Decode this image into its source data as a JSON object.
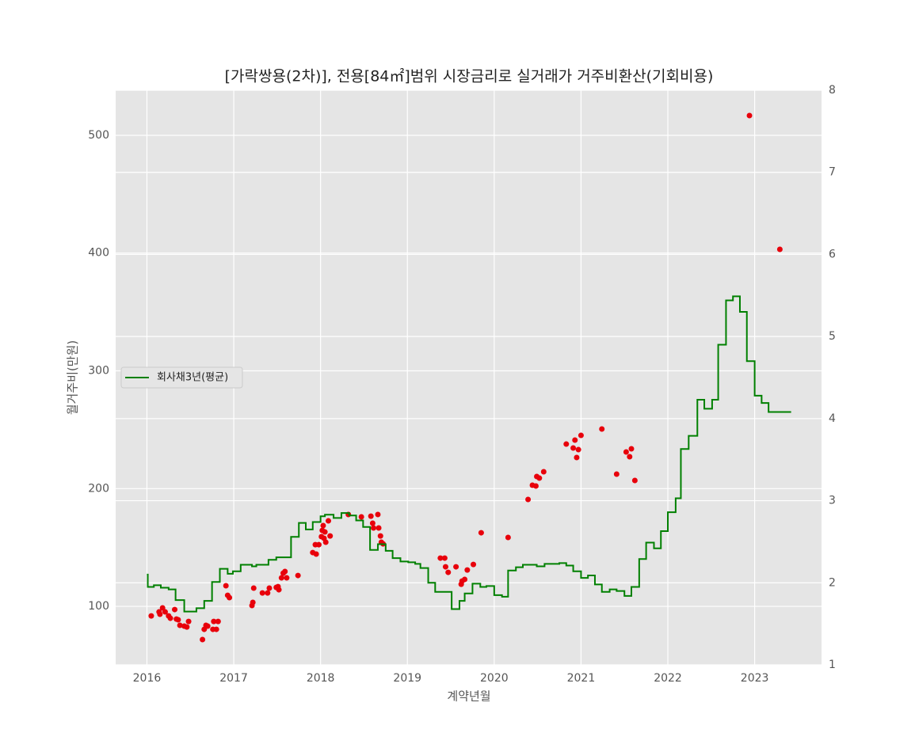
{
  "chart_data": {
    "type": "scatter",
    "title": "[가락쌍용(2차)], 전용[84㎡]범위 시장금리로 실거래가 거주비환산(기회비용)",
    "x_label": "계약년월",
    "y_label": "월거주비(만원)",
    "xlim": [
      2015.64,
      2023.77
    ],
    "xticks": [
      2016,
      2017,
      2018,
      2019,
      2020,
      2021,
      2022,
      2023
    ],
    "ylim": [
      50.3,
      538.3
    ],
    "yticks": [
      100,
      200,
      300,
      400,
      500
    ],
    "y2lim": [
      1,
      8
    ],
    "y2ticks": [
      1,
      2,
      3,
      4,
      5,
      6,
      7,
      8
    ],
    "grid": true,
    "legend": "center left",
    "series": [
      {
        "type": "scatter",
        "color": "#e8000b",
        "x": [
          2016.05,
          2016.14,
          2016.15,
          2016.18,
          2016.21,
          2016.25,
          2016.27,
          2016.32,
          2016.34,
          2016.36,
          2016.38,
          2016.43,
          2016.46,
          2016.48,
          2016.64,
          2016.66,
          2016.68,
          2016.7,
          2016.76,
          2016.77,
          2016.8,
          2016.82,
          2016.91,
          2016.93,
          2016.95,
          2017.21,
          2017.22,
          2017.23,
          2017.33,
          2017.39,
          2017.41,
          2017.49,
          2017.51,
          2017.52,
          2017.55,
          2017.57,
          2017.59,
          2017.61,
          2017.74,
          2017.91,
          2017.94,
          2017.95,
          2017.98,
          2018.01,
          2018.02,
          2018.03,
          2018.04,
          2018.05,
          2018.06,
          2018.09,
          2018.11,
          2018.32,
          2018.47,
          2018.58,
          2018.6,
          2018.61,
          2018.66,
          2018.67,
          2018.69,
          2018.7,
          2018.72,
          2019.38,
          2019.43,
          2019.44,
          2019.47,
          2019.56,
          2019.62,
          2019.63,
          2019.66,
          2019.69,
          2019.76,
          2019.85,
          2020.16,
          2020.39,
          2020.44,
          2020.48,
          2020.49,
          2020.52,
          2020.57,
          2020.83,
          2020.91,
          2020.93,
          2020.95,
          2020.97,
          2021.0,
          2021.24,
          2021.41,
          2021.52,
          2021.56,
          2021.58,
          2021.62,
          2022.94,
          2023.29
        ],
        "values": [
          91.9,
          95.3,
          93.3,
          98.7,
          95.3,
          91.9,
          89.9,
          97.3,
          89.2,
          88.6,
          83.9,
          83.2,
          82.5,
          87.2,
          71.8,
          80.5,
          83.9,
          83.2,
          80.5,
          87.2,
          80.5,
          87.2,
          117.5,
          109.4,
          107.4,
          100.7,
          103.4,
          115.5,
          111.4,
          111.4,
          115.5,
          116.1,
          116.8,
          114.1,
          124.2,
          128.2,
          129.6,
          124.2,
          126.2,
          145.7,
          152.4,
          144.4,
          152.4,
          159.2,
          164.5,
          168.6,
          157.8,
          163.2,
          154.5,
          172.6,
          159.8,
          178.0,
          176.0,
          176.6,
          170.6,
          166.6,
          178.0,
          166.6,
          159.8,
          154.5,
          153.1,
          141.0,
          141.0,
          133.6,
          128.9,
          133.6,
          118.8,
          121.5,
          122.9,
          130.9,
          135.6,
          162.5,
          158.5,
          190.8,
          202.9,
          202.2,
          210.3,
          208.9,
          214.3,
          237.8,
          234.5,
          241.2,
          226.4,
          233.1,
          245.2,
          250.6,
          212.3,
          231.1,
          227.1,
          233.8,
          206.9,
          516.8,
          403.2
        ]
      },
      {
        "type": "line",
        "name": "회사채3년(평균)",
        "color": "#008000",
        "axis": "y2",
        "step": "post",
        "x": [
          2016.0,
          2016.01,
          2016.08,
          2016.16,
          2016.25,
          2016.33,
          2016.43,
          2016.57,
          2016.66,
          2016.75,
          2016.84,
          2016.93,
          2016.99,
          2017.08,
          2017.21,
          2017.26,
          2017.4,
          2017.49,
          2017.66,
          2017.75,
          2017.83,
          2017.91,
          2018.0,
          2018.05,
          2018.15,
          2018.24,
          2018.33,
          2018.41,
          2018.49,
          2018.57,
          2018.66,
          2018.75,
          2018.83,
          2018.92,
          2019.01,
          2019.09,
          2019.15,
          2019.24,
          2019.32,
          2019.51,
          2019.6,
          2019.66,
          2019.75,
          2019.84,
          2019.91,
          2020.0,
          2020.09,
          2020.16,
          2020.25,
          2020.33,
          2020.49,
          2020.58,
          2020.75,
          2020.83,
          2020.91,
          2021.0,
          2021.08,
          2021.16,
          2021.24,
          2021.33,
          2021.41,
          2021.5,
          2021.58,
          2021.67,
          2021.75,
          2021.84,
          2021.92,
          2022.0,
          2022.09,
          2022.15,
          2022.24,
          2022.34,
          2022.42,
          2022.51,
          2022.58,
          2022.67,
          2022.75,
          2022.83,
          2022.91,
          2023.0,
          2023.08,
          2023.16,
          2023.42
        ],
        "values": [
          2.1,
          1.95,
          1.97,
          1.94,
          1.92,
          1.79,
          1.65,
          1.69,
          1.78,
          2.01,
          2.17,
          2.11,
          2.14,
          2.22,
          2.2,
          2.22,
          2.28,
          2.31,
          2.56,
          2.73,
          2.65,
          2.74,
          2.81,
          2.83,
          2.79,
          2.85,
          2.82,
          2.76,
          2.68,
          2.4,
          2.47,
          2.39,
          2.3,
          2.26,
          2.25,
          2.23,
          2.18,
          2.0,
          1.89,
          1.68,
          1.78,
          1.87,
          1.99,
          1.95,
          1.96,
          1.85,
          1.83,
          2.15,
          2.19,
          2.22,
          2.2,
          2.23,
          2.24,
          2.21,
          2.14,
          2.06,
          2.09,
          1.98,
          1.89,
          1.92,
          1.9,
          1.84,
          1.95,
          2.29,
          2.49,
          2.42,
          2.63,
          2.86,
          3.03,
          3.63,
          3.79,
          4.23,
          4.12,
          4.23,
          4.9,
          5.44,
          5.49,
          5.3,
          4.7,
          4.28,
          4.19,
          4.08,
          4.08
        ]
      }
    ]
  }
}
